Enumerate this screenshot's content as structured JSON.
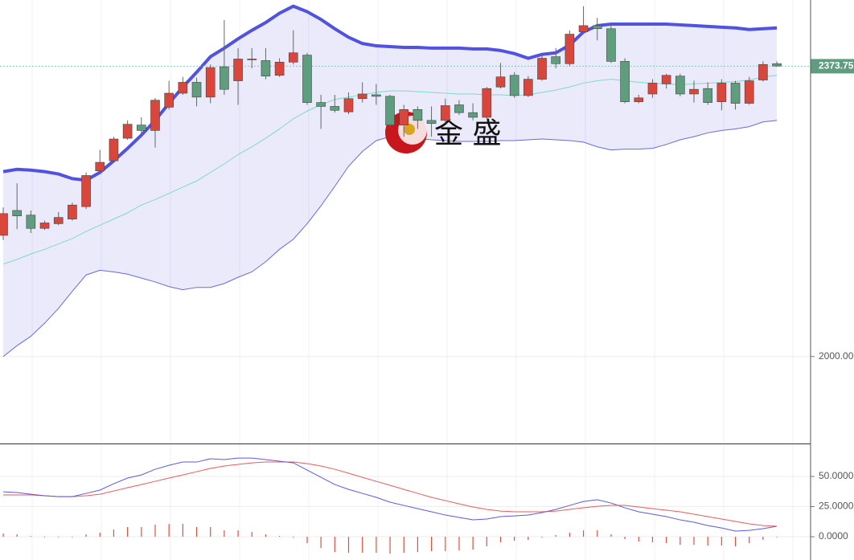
{
  "watermark": "金 盛",
  "chart_data": [
    {
      "type": "candlestick",
      "open": [
        2156,
        2188,
        2182,
        2165,
        2171,
        2177,
        2193,
        2239,
        2252,
        2281,
        2298,
        2291,
        2321,
        2339,
        2353,
        2334,
        2373,
        2355,
        2382,
        2381,
        2362,
        2379,
        2388,
        2327,
        2322,
        2315,
        2332,
        2337,
        2335,
        2298,
        2318,
        2304,
        2304,
        2324,
        2314,
        2308,
        2347,
        2362,
        2336,
        2357,
        2386,
        2377,
        2418,
        2426,
        2422,
        2380,
        2328,
        2338,
        2351,
        2361,
        2338,
        2345,
        2328,
        2352,
        2326,
        2356,
        2377
      ],
      "high": [
        2192,
        2223,
        2188,
        2175,
        2186,
        2198,
        2237,
        2266,
        2283,
        2304,
        2308,
        2333,
        2355,
        2360,
        2359,
        2376,
        2433,
        2397,
        2397,
        2397,
        2384,
        2420,
        2391,
        2337,
        2337,
        2340,
        2353,
        2351,
        2337,
        2324,
        2322,
        2322,
        2332,
        2330,
        2326,
        2347,
        2378,
        2366,
        2361,
        2389,
        2397,
        2420,
        2451,
        2436,
        2428,
        2384,
        2337,
        2357,
        2364,
        2364,
        2355,
        2353,
        2357,
        2355,
        2360,
        2380,
        2380
      ],
      "low": [
        2150,
        2164,
        2159,
        2163,
        2169,
        2175,
        2190,
        2237,
        2250,
        2279,
        2287,
        2269,
        2318,
        2337,
        2322,
        2326,
        2337,
        2324,
        2371,
        2357,
        2360,
        2376,
        2324,
        2293,
        2314,
        2312,
        2327,
        2324,
        2295,
        2283,
        2293,
        2283,
        2300,
        2311,
        2304,
        2306,
        2345,
        2333,
        2334,
        2355,
        2371,
        2374,
        2415,
        2407,
        2378,
        2326,
        2326,
        2333,
        2345,
        2335,
        2327,
        2324,
        2317,
        2318,
        2324,
        2354,
        2373
      ],
      "close": [
        2184,
        2181,
        2165,
        2172,
        2179,
        2195,
        2233,
        2250,
        2280,
        2299,
        2291,
        2330,
        2339,
        2353,
        2334,
        2372,
        2344,
        2383,
        2383,
        2361,
        2379,
        2391,
        2327,
        2322,
        2317,
        2332,
        2338,
        2335,
        2298,
        2318,
        2304,
        2300,
        2323,
        2314,
        2308,
        2345,
        2360,
        2336,
        2357,
        2384,
        2377,
        2415,
        2426,
        2422,
        2380,
        2328,
        2333,
        2352,
        2362,
        2338,
        2344,
        2327,
        2352,
        2326,
        2355,
        2376,
        2374
      ],
      "up_color": "#d9463b",
      "down_color": "#5e9e7e",
      "upper": [
        2238,
        2241,
        2240,
        2238,
        2235,
        2229,
        2227,
        2237,
        2252,
        2268,
        2285,
        2304,
        2326,
        2347,
        2366,
        2386,
        2397,
        2409,
        2420,
        2430,
        2442,
        2451,
        2444,
        2434,
        2422,
        2411,
        2403,
        2400,
        2399,
        2398,
        2398,
        2397,
        2397,
        2397,
        2396,
        2396,
        2394,
        2390,
        2384,
        2389,
        2391,
        2401,
        2418,
        2426,
        2428,
        2428,
        2428,
        2428,
        2428,
        2427,
        2426,
        2425,
        2424,
        2423,
        2421,
        2422,
        2423
      ],
      "middle": [
        2119,
        2125,
        2132,
        2138,
        2145,
        2152,
        2161,
        2169,
        2177,
        2185,
        2195,
        2202,
        2210,
        2218,
        2226,
        2237,
        2248,
        2260,
        2270,
        2281,
        2293,
        2306,
        2316,
        2324,
        2331,
        2334,
        2337,
        2340,
        2342,
        2342,
        2341,
        2340,
        2339,
        2338,
        2338,
        2337,
        2337,
        2336,
        2337,
        2340,
        2343,
        2347,
        2352,
        2355,
        2357,
        2355,
        2353,
        2352,
        2351,
        2350,
        2351,
        2352,
        2353,
        2354,
        2356,
        2360,
        2362
      ],
      "lower": [
        2000,
        2014,
        2026,
        2043,
        2062,
        2084,
        2105,
        2111,
        2109,
        2106,
        2101,
        2096,
        2090,
        2086,
        2089,
        2089,
        2094,
        2102,
        2109,
        2122,
        2138,
        2151,
        2171,
        2194,
        2219,
        2245,
        2264,
        2278,
        2283,
        2283,
        2281,
        2279,
        2278,
        2277,
        2277,
        2277,
        2278,
        2278,
        2279,
        2280,
        2279,
        2278,
        2276,
        2270,
        2266,
        2267,
        2267,
        2268,
        2273,
        2279,
        2283,
        2288,
        2291,
        2293,
        2296,
        2302,
        2304
      ],
      "upper_color": "#5252e0",
      "middle_color": "#7fd9c8",
      "lower_color": "#6a6ae0",
      "ylim": [
        1888,
        2459
      ],
      "yticks": [
        {
          "value": 2000,
          "label": "2000.00"
        }
      ],
      "last_price": {
        "value": 2373.75,
        "label": "2373.75"
      }
    },
    {
      "type": "macd",
      "dif": [
        37.3,
        36.7,
        35.3,
        34,
        33.3,
        33.3,
        36,
        38.7,
        44,
        48.7,
        51.3,
        56,
        59.3,
        62,
        62,
        64.7,
        64,
        65.3,
        65.3,
        64,
        62.7,
        61.3,
        55.3,
        49.3,
        43.3,
        39.3,
        36,
        32.7,
        28.7,
        26,
        23.3,
        20.7,
        18,
        16,
        14,
        14.7,
        16.7,
        17.3,
        18,
        20,
        22.7,
        26,
        29.3,
        30.7,
        28,
        24,
        20.7,
        18.7,
        16.7,
        14,
        12,
        9.3,
        7.3,
        4.7,
        5.3,
        6.7,
        8.7
      ],
      "dea": [
        34.7,
        34.7,
        34.7,
        34,
        33.3,
        33.3,
        34,
        35.3,
        38,
        40.7,
        43.3,
        46,
        48.7,
        51.3,
        54,
        56.7,
        58.7,
        60,
        61.3,
        62,
        62,
        62,
        60.7,
        58.7,
        56,
        52.7,
        49.3,
        46,
        42.7,
        39.3,
        36,
        32.7,
        30,
        27.3,
        24.7,
        22.7,
        21.3,
        20.7,
        20.7,
        20.7,
        21.3,
        22.7,
        24,
        25.3,
        26,
        26,
        24.7,
        23.3,
        22,
        20.7,
        18.7,
        16.7,
        14.7,
        12.7,
        10.7,
        9.3,
        8.7
      ],
      "hist": [
        2.6,
        2,
        0.6,
        0,
        0,
        0,
        2,
        3.4,
        6,
        8,
        8,
        10,
        10.6,
        10.7,
        8,
        8,
        5.3,
        5.3,
        4,
        2,
        0.7,
        -0.7,
        -5.4,
        -9.4,
        -12.7,
        -13.4,
        -13.3,
        -13.3,
        -14,
        -13.3,
        -12.7,
        -12,
        -12,
        -11.3,
        -10.7,
        -8,
        -4.6,
        -3.4,
        -2.7,
        -0.7,
        1.4,
        3.3,
        5.3,
        5.4,
        2,
        -2,
        -4,
        -4.6,
        -5.3,
        -6.7,
        -6.7,
        -7.4,
        -7.4,
        -8,
        -5.4,
        -2.6,
        0
      ],
      "dif_color": "#5a5ae6",
      "dea_color": "#ee5a5a",
      "hist_color": "#e0503f",
      "ylim": [
        -19.3,
        76.7
      ],
      "yticks": [
        {
          "value": 50,
          "label": "50.0000"
        },
        {
          "value": 25,
          "label": "25.0000"
        },
        {
          "value": 0,
          "label": "0.0000"
        }
      ]
    }
  ]
}
